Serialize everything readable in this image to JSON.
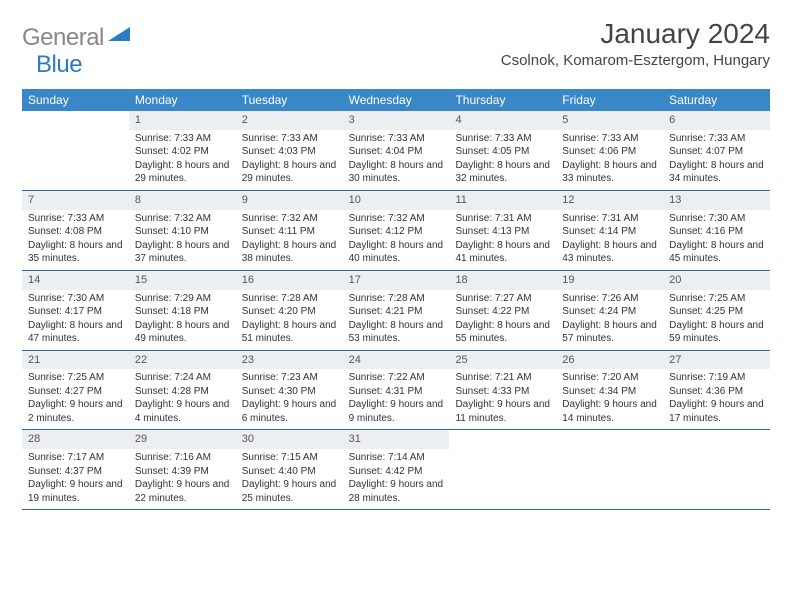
{
  "logo": {
    "text1": "General",
    "text2": "Blue"
  },
  "title": "January 2024",
  "location": "Csolnok, Komarom-Esztergom, Hungary",
  "colors": {
    "header_bg": "#3a87c8",
    "header_text": "#ffffff",
    "daynum_bg": "#eceff1",
    "border": "#2b6aa6",
    "logo_gray": "#888888",
    "logo_blue": "#2b7cc4"
  },
  "days_of_week": [
    "Sunday",
    "Monday",
    "Tuesday",
    "Wednesday",
    "Thursday",
    "Friday",
    "Saturday"
  ],
  "weeks": [
    [
      null,
      {
        "n": "1",
        "sr": "7:33 AM",
        "ss": "4:02 PM",
        "dl": "8 hours and 29 minutes."
      },
      {
        "n": "2",
        "sr": "7:33 AM",
        "ss": "4:03 PM",
        "dl": "8 hours and 29 minutes."
      },
      {
        "n": "3",
        "sr": "7:33 AM",
        "ss": "4:04 PM",
        "dl": "8 hours and 30 minutes."
      },
      {
        "n": "4",
        "sr": "7:33 AM",
        "ss": "4:05 PM",
        "dl": "8 hours and 32 minutes."
      },
      {
        "n": "5",
        "sr": "7:33 AM",
        "ss": "4:06 PM",
        "dl": "8 hours and 33 minutes."
      },
      {
        "n": "6",
        "sr": "7:33 AM",
        "ss": "4:07 PM",
        "dl": "8 hours and 34 minutes."
      }
    ],
    [
      {
        "n": "7",
        "sr": "7:33 AM",
        "ss": "4:08 PM",
        "dl": "8 hours and 35 minutes."
      },
      {
        "n": "8",
        "sr": "7:32 AM",
        "ss": "4:10 PM",
        "dl": "8 hours and 37 minutes."
      },
      {
        "n": "9",
        "sr": "7:32 AM",
        "ss": "4:11 PM",
        "dl": "8 hours and 38 minutes."
      },
      {
        "n": "10",
        "sr": "7:32 AM",
        "ss": "4:12 PM",
        "dl": "8 hours and 40 minutes."
      },
      {
        "n": "11",
        "sr": "7:31 AM",
        "ss": "4:13 PM",
        "dl": "8 hours and 41 minutes."
      },
      {
        "n": "12",
        "sr": "7:31 AM",
        "ss": "4:14 PM",
        "dl": "8 hours and 43 minutes."
      },
      {
        "n": "13",
        "sr": "7:30 AM",
        "ss": "4:16 PM",
        "dl": "8 hours and 45 minutes."
      }
    ],
    [
      {
        "n": "14",
        "sr": "7:30 AM",
        "ss": "4:17 PM",
        "dl": "8 hours and 47 minutes."
      },
      {
        "n": "15",
        "sr": "7:29 AM",
        "ss": "4:18 PM",
        "dl": "8 hours and 49 minutes."
      },
      {
        "n": "16",
        "sr": "7:28 AM",
        "ss": "4:20 PM",
        "dl": "8 hours and 51 minutes."
      },
      {
        "n": "17",
        "sr": "7:28 AM",
        "ss": "4:21 PM",
        "dl": "8 hours and 53 minutes."
      },
      {
        "n": "18",
        "sr": "7:27 AM",
        "ss": "4:22 PM",
        "dl": "8 hours and 55 minutes."
      },
      {
        "n": "19",
        "sr": "7:26 AM",
        "ss": "4:24 PM",
        "dl": "8 hours and 57 minutes."
      },
      {
        "n": "20",
        "sr": "7:25 AM",
        "ss": "4:25 PM",
        "dl": "8 hours and 59 minutes."
      }
    ],
    [
      {
        "n": "21",
        "sr": "7:25 AM",
        "ss": "4:27 PM",
        "dl": "9 hours and 2 minutes."
      },
      {
        "n": "22",
        "sr": "7:24 AM",
        "ss": "4:28 PM",
        "dl": "9 hours and 4 minutes."
      },
      {
        "n": "23",
        "sr": "7:23 AM",
        "ss": "4:30 PM",
        "dl": "9 hours and 6 minutes."
      },
      {
        "n": "24",
        "sr": "7:22 AM",
        "ss": "4:31 PM",
        "dl": "9 hours and 9 minutes."
      },
      {
        "n": "25",
        "sr": "7:21 AM",
        "ss": "4:33 PM",
        "dl": "9 hours and 11 minutes."
      },
      {
        "n": "26",
        "sr": "7:20 AM",
        "ss": "4:34 PM",
        "dl": "9 hours and 14 minutes."
      },
      {
        "n": "27",
        "sr": "7:19 AM",
        "ss": "4:36 PM",
        "dl": "9 hours and 17 minutes."
      }
    ],
    [
      {
        "n": "28",
        "sr": "7:17 AM",
        "ss": "4:37 PM",
        "dl": "9 hours and 19 minutes."
      },
      {
        "n": "29",
        "sr": "7:16 AM",
        "ss": "4:39 PM",
        "dl": "9 hours and 22 minutes."
      },
      {
        "n": "30",
        "sr": "7:15 AM",
        "ss": "4:40 PM",
        "dl": "9 hours and 25 minutes."
      },
      {
        "n": "31",
        "sr": "7:14 AM",
        "ss": "4:42 PM",
        "dl": "9 hours and 28 minutes."
      },
      null,
      null,
      null
    ]
  ],
  "labels": {
    "sunrise": "Sunrise:",
    "sunset": "Sunset:",
    "daylight": "Daylight:"
  }
}
